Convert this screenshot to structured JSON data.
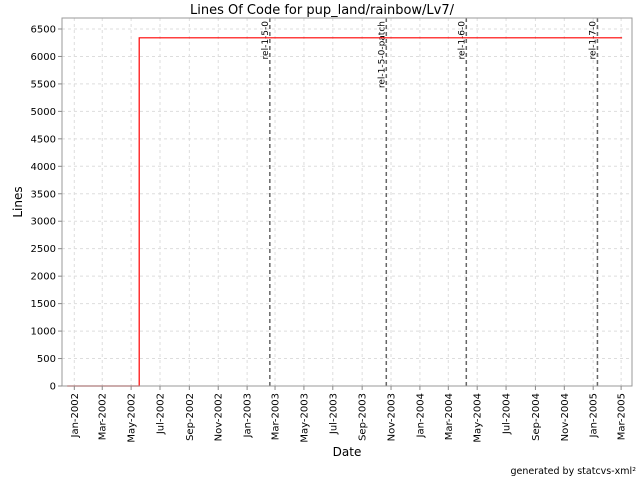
{
  "chart_data": {
    "type": "line",
    "title": "Lines Of Code for pup_land/rainbow/Lv7/",
    "xlabel": "Date",
    "ylabel": "Lines",
    "footer": "generated by statcvs-xml²",
    "xlim": [
      "2001-12-06",
      "2005-03-24"
    ],
    "ylim": [
      0,
      6700
    ],
    "yticks": [
      0,
      500,
      1000,
      1500,
      2000,
      2500,
      3000,
      3500,
      4000,
      4500,
      5000,
      5500,
      6000,
      6500
    ],
    "xticks": [
      {
        "date": "2002-01-01",
        "label": "Jan-2002"
      },
      {
        "date": "2002-03-01",
        "label": "Mar-2002"
      },
      {
        "date": "2002-05-01",
        "label": "May-2002"
      },
      {
        "date": "2002-07-01",
        "label": "Jul-2002"
      },
      {
        "date": "2002-09-01",
        "label": "Sep-2002"
      },
      {
        "date": "2002-11-01",
        "label": "Nov-2002"
      },
      {
        "date": "2003-01-01",
        "label": "Jan-2003"
      },
      {
        "date": "2003-03-01",
        "label": "Mar-2003"
      },
      {
        "date": "2003-05-01",
        "label": "May-2003"
      },
      {
        "date": "2003-07-01",
        "label": "Jul-2003"
      },
      {
        "date": "2003-09-01",
        "label": "Sep-2003"
      },
      {
        "date": "2003-11-01",
        "label": "Nov-2003"
      },
      {
        "date": "2004-01-01",
        "label": "Jan-2004"
      },
      {
        "date": "2004-03-01",
        "label": "Mar-2004"
      },
      {
        "date": "2004-05-01",
        "label": "May-2004"
      },
      {
        "date": "2004-07-01",
        "label": "Jul-2004"
      },
      {
        "date": "2004-09-01",
        "label": "Sep-2004"
      },
      {
        "date": "2004-11-01",
        "label": "Nov-2004"
      },
      {
        "date": "2005-01-01",
        "label": "Jan-2005"
      },
      {
        "date": "2005-03-01",
        "label": "Mar-2005"
      }
    ],
    "grid": true,
    "series": [
      {
        "color": "#ff0000",
        "step": true,
        "points": [
          [
            "2001-12-17",
            0
          ],
          [
            "2002-05-18",
            0
          ],
          [
            "2002-05-18",
            6340
          ],
          [
            "2005-03-03",
            6340
          ]
        ]
      }
    ],
    "markers": [
      {
        "date": "2003-02-18",
        "label": "rel-1-5-0"
      },
      {
        "date": "2003-10-22",
        "label": "rel-1-5-0-patch"
      },
      {
        "date": "2004-04-08",
        "label": "rel-1-6-0"
      },
      {
        "date": "2005-01-10",
        "label": "rel-1-7-0"
      }
    ]
  }
}
